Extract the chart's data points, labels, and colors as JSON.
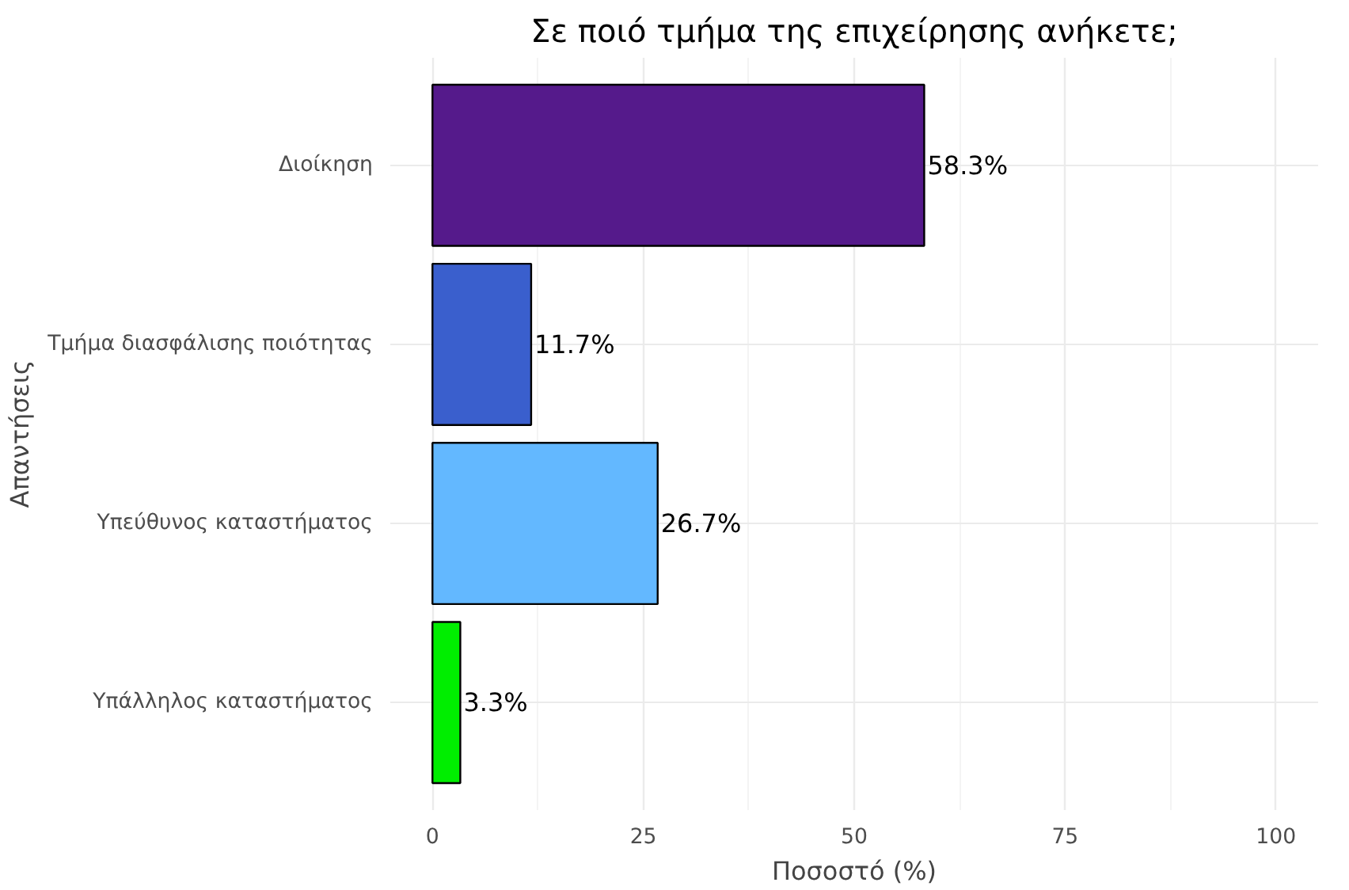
{
  "chart_data": {
    "type": "bar",
    "orientation": "horizontal",
    "title": "Σε ποιό τμήμα της επιχείρησης ανήκετε;",
    "xlabel": "Ποσοστό (%)",
    "ylabel": "Απαντήσεις",
    "categories": [
      "Διοίκηση",
      "Τμήμα διασφάλισης ποιότητας",
      "Υπεύθυνος καταστήματος",
      "Υπάλληλος καταστήματος"
    ],
    "values": [
      58.3,
      11.7,
      26.7,
      3.3
    ],
    "colors": [
      "#551a8b",
      "#3a5fcd",
      "#63b8ff",
      "#00ee00"
    ],
    "value_labels": [
      "58.3%",
      "11.7%",
      "26.7%",
      "3.3%"
    ],
    "xlim": [
      -5,
      105
    ],
    "xticks": [
      0,
      25,
      50,
      75,
      100
    ],
    "grid": true
  }
}
